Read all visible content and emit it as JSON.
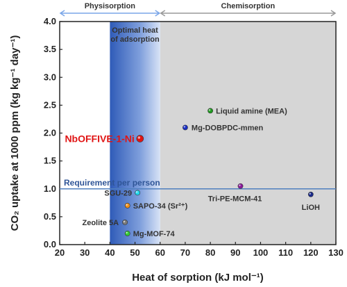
{
  "chart_data": {
    "type": "scatter",
    "xlabel": "Heat of sorption (kJ mol⁻¹)",
    "ylabel": "CO₂ uptake at 1000 ppm (kg kg⁻¹ day⁻¹)",
    "xlim": [
      20,
      130
    ],
    "ylim": [
      0.0,
      4.0
    ],
    "xticks": [
      "20",
      "30",
      "40",
      "50",
      "60",
      "70",
      "80",
      "90",
      "100",
      "110",
      "120",
      "130"
    ],
    "yticks": [
      "0.0",
      "0.5",
      "1.0",
      "1.5",
      "2.0",
      "2.5",
      "3.0",
      "3.5",
      "4.0"
    ],
    "grid": false,
    "regions": [
      {
        "name": "Physisorption",
        "x": [
          20,
          60
        ],
        "color": "#7aa6e8"
      },
      {
        "name": "Chemisorption",
        "x": [
          60,
          130
        ],
        "color": "#999999"
      }
    ],
    "optimal_band": {
      "label_line1": "Optimal heat",
      "label_line2": "of adsorption",
      "x": [
        40,
        60
      ]
    },
    "requirement": {
      "label": "Requirement per person",
      "y": 1.0,
      "color": "#4f7fbf"
    },
    "points": [
      {
        "label": "NbOFFIVE-1-Ni",
        "x": 52,
        "y": 1.9,
        "color": "#e01414",
        "highlight": true
      },
      {
        "label": "Liquid amine (MEA)",
        "x": 80,
        "y": 2.4,
        "color": "#1f9a1f"
      },
      {
        "label": "Mg-DOBPDC-mmen",
        "x": 70,
        "y": 2.1,
        "color": "#1a2fc4"
      },
      {
        "label": "SGU-29",
        "x": 51,
        "y": 0.93,
        "color": "#22d8ee"
      },
      {
        "label": "SAPO-34 (Sr²⁺)",
        "x": 47,
        "y": 0.7,
        "color": "#f0901c"
      },
      {
        "label": "Zeolite 5A",
        "x": 46,
        "y": 0.4,
        "color": "#7a7a7a"
      },
      {
        "label": "Mg-MOF-74",
        "x": 47,
        "y": 0.2,
        "color": "#33cc33"
      },
      {
        "label": "Tri-PE-MCM-41",
        "x": 92,
        "y": 1.05,
        "color": "#8a1a9a"
      },
      {
        "label": "LiOH",
        "x": 120,
        "y": 0.9,
        "color": "#1a2a8a"
      }
    ]
  }
}
